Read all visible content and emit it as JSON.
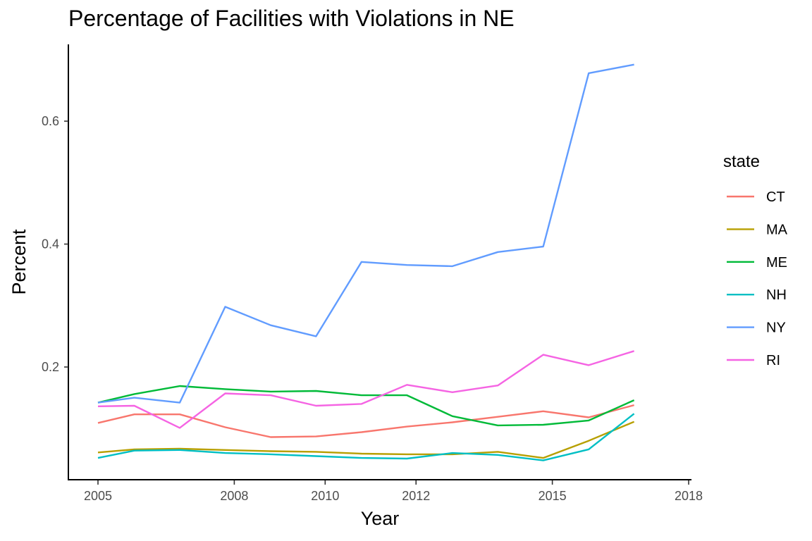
{
  "chart_data": {
    "type": "line",
    "title": "Percentage of Facilities with Violations in NE",
    "xlabel": "Year",
    "ylabel": "Percent",
    "xlim": [
      2004.5,
      2018.0
    ],
    "ylim": [
      0,
      0.72
    ],
    "x_ticks": [
      2005,
      2008,
      2010,
      2012,
      2015,
      2018
    ],
    "y_ticks": [
      0.2,
      0.4,
      0.6
    ],
    "grid": false,
    "legend": {
      "title": "state",
      "placement": "right"
    },
    "x": [
      2005.0,
      2005.8,
      2006.8,
      2007.8,
      2008.8,
      2009.8,
      2010.8,
      2011.8,
      2012.8,
      2013.8,
      2014.8,
      2015.8,
      2016.8
    ],
    "series": [
      {
        "name": "CT",
        "color": "#F8766D",
        "values": [
          0.109,
          0.123,
          0.123,
          0.102,
          0.086,
          0.087,
          0.094,
          0.103,
          0.11,
          0.119,
          0.128,
          0.118,
          0.138
        ]
      },
      {
        "name": "MA",
        "color": "#B79F00",
        "values": [
          0.061,
          0.066,
          0.067,
          0.065,
          0.063,
          0.062,
          0.059,
          0.058,
          0.058,
          0.062,
          0.052,
          0.08,
          0.111
        ]
      },
      {
        "name": "ME",
        "color": "#00BA38",
        "values": [
          0.142,
          0.156,
          0.169,
          0.164,
          0.16,
          0.161,
          0.154,
          0.154,
          0.12,
          0.105,
          0.106,
          0.113,
          0.146
        ]
      },
      {
        "name": "NH",
        "color": "#00BFC4",
        "values": [
          0.052,
          0.064,
          0.065,
          0.06,
          0.058,
          0.055,
          0.052,
          0.051,
          0.06,
          0.057,
          0.048,
          0.066,
          0.124
        ]
      },
      {
        "name": "NY",
        "color": "#619CFF",
        "values": [
          0.142,
          0.15,
          0.142,
          0.298,
          0.268,
          0.25,
          0.371,
          0.366,
          0.364,
          0.387,
          0.396,
          0.678,
          0.692
        ]
      },
      {
        "name": "RI",
        "color": "#F564E3",
        "values": [
          0.136,
          0.137,
          0.101,
          0.157,
          0.154,
          0.137,
          0.14,
          0.171,
          0.159,
          0.17,
          0.22,
          0.203,
          0.226
        ]
      }
    ]
  }
}
